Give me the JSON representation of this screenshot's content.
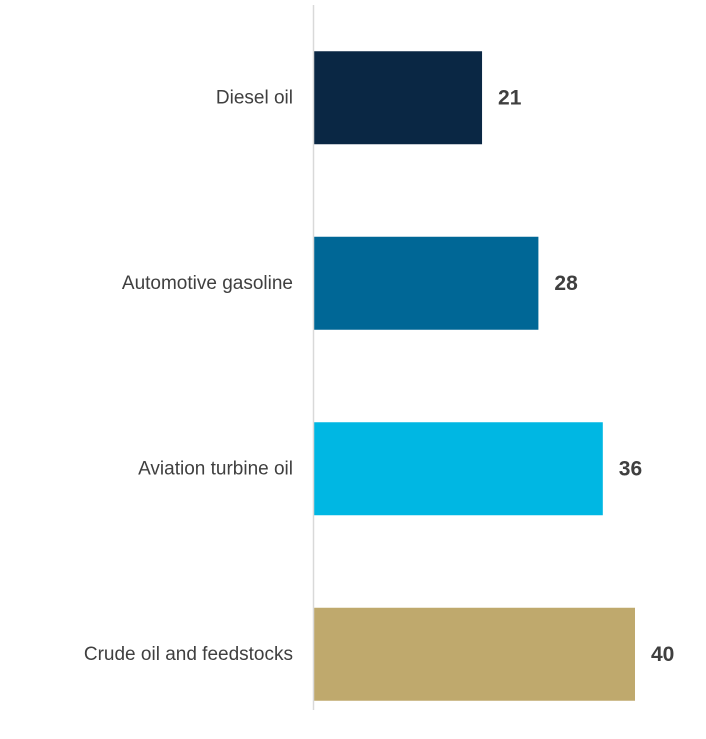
{
  "chart_data": {
    "type": "bar",
    "orientation": "horizontal",
    "categories": [
      "Diesel oil",
      "Automotive gasoline",
      "Aviation turbine oil",
      "Crude oil and feedstocks"
    ],
    "values": [
      21,
      28,
      36,
      40
    ],
    "value_labels": [
      "21",
      "28",
      "36",
      "40"
    ],
    "colors": [
      "#0a2744",
      "#006796",
      "#00b7e3",
      "#bfa96d"
    ],
    "axis_color": "#d9d9d9",
    "title": "",
    "xlabel": "",
    "ylabel": "",
    "xlim": [
      0,
      40
    ],
    "grid": false,
    "legend": "none",
    "data_labels": true
  }
}
